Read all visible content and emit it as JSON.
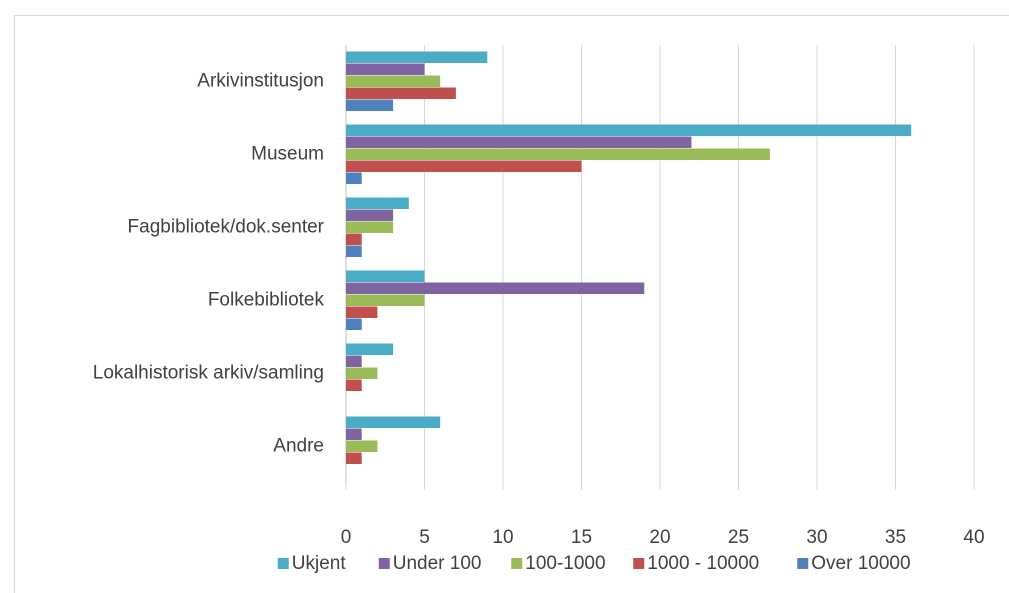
{
  "chart_data": {
    "type": "bar",
    "orientation": "horizontal",
    "categories": [
      "Arkivinstitusjon",
      "Museum",
      "Fagbibliotek/dok.senter",
      "Folkebibliotek",
      "Lokalhistorisk arkiv/samling",
      "Andre"
    ],
    "series": [
      {
        "name": "Ukjent",
        "color": "#4bacc6",
        "values": [
          9,
          36,
          4,
          5,
          3,
          6
        ]
      },
      {
        "name": "Under 100",
        "color": "#8064a2",
        "values": [
          5,
          22,
          3,
          19,
          1,
          1
        ]
      },
      {
        "name": "100-1000",
        "color": "#9bbb59",
        "values": [
          6,
          27,
          3,
          5,
          2,
          2
        ]
      },
      {
        "name": "1000 - 10000",
        "color": "#c0504d",
        "values": [
          7,
          15,
          1,
          2,
          1,
          1
        ]
      },
      {
        "name": "Over 10000",
        "color": "#4f81bd",
        "values": [
          3,
          1,
          1,
          1,
          0,
          0
        ]
      }
    ],
    "xlim": [
      0,
      40
    ],
    "xticks": [
      0,
      5,
      10,
      15,
      20,
      25,
      30,
      35,
      40
    ],
    "grid": true,
    "legend": "bottom"
  }
}
